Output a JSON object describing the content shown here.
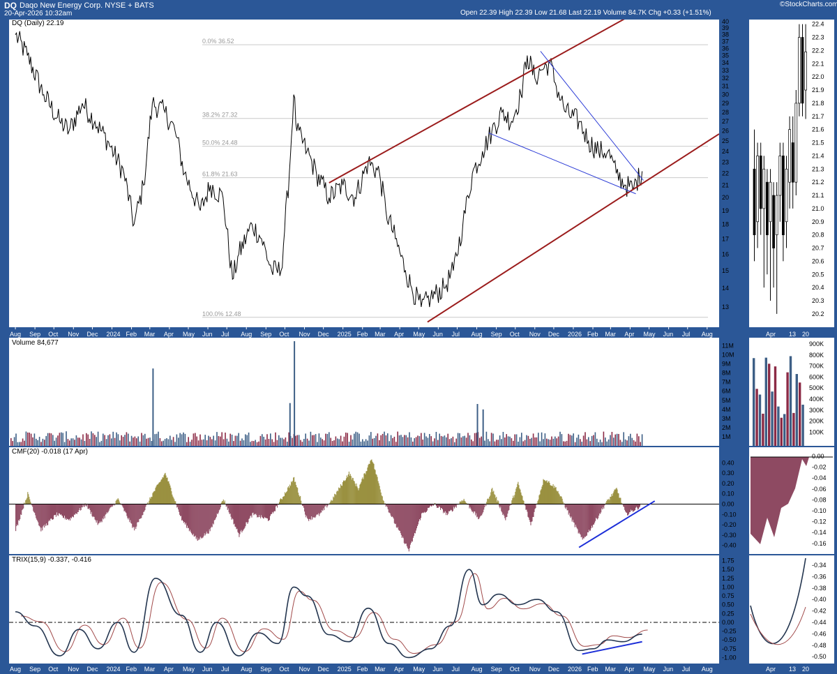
{
  "header": {
    "ticker": "DQ",
    "company": "Daqo New Energy Corp. NYSE + BATS",
    "datetime": "20-Apr-2026 10:32am",
    "stats": "Open 22.39 High 22.39 Low 21.68 Last 22.19 Volume 84.7K Chg +0.33 (+1.51%)",
    "logo": "©StockCharts.com"
  },
  "colors": {
    "background": "#2b5797",
    "panel": "#ffffff",
    "price_line": "#000000",
    "channel": "#9b1c1c",
    "wedge": "#2b3bd6",
    "volume_up": "#3d5f86",
    "volume_down": "#8b2a45",
    "cmf_positive": "#9a9140",
    "cmf_negative": "#8e4a62",
    "trix": "#23354f",
    "trix_signal": "#a04848",
    "trend": "#1c2ed8"
  },
  "chart_data": [
    {
      "type": "line",
      "panel": "price",
      "title": "DQ (Daily) 22.19",
      "x_tick_labels": [
        "Aug",
        "Sep",
        "Oct",
        "Nov",
        "Dec",
        "2024",
        "Feb",
        "Mar",
        "Apr",
        "May",
        "Jun",
        "Jul",
        "Aug",
        "Sep",
        "Oct",
        "Nov",
        "Dec",
        "2025",
        "Feb",
        "Mar",
        "Apr",
        "May",
        "Jun",
        "Jul",
        "Aug",
        "Sep",
        "Oct",
        "Nov",
        "Dec",
        "2026",
        "Feb",
        "Mar",
        "Apr",
        "May",
        "Jun",
        "Jul",
        "Aug"
      ],
      "y_tick_labels": [
        "13",
        "14",
        "15",
        "16",
        "17",
        "18",
        "19",
        "20",
        "21",
        "22",
        "23",
        "24",
        "25",
        "26",
        "27",
        "28",
        "29",
        "30",
        "31",
        "32",
        "33",
        "34",
        "35",
        "36",
        "37",
        "38",
        "39",
        "40"
      ],
      "y_scale": "log",
      "ylim": [
        12.1,
        40
      ],
      "series": [
        {
          "x": [
            "2023-08-01",
            "2023-08-20",
            "2023-09-15",
            "2023-10-10",
            "2023-10-25",
            "2023-11-15",
            "2023-12-05",
            "2023-12-25",
            "2024-01-20",
            "2024-02-05",
            "2024-02-20",
            "2024-03-05",
            "2024-03-25",
            "2024-04-10",
            "2024-04-25",
            "2024-05-20",
            "2024-06-05",
            "2024-06-25",
            "2024-07-10",
            "2024-07-20",
            "2024-08-10",
            "2024-08-25",
            "2024-09-10",
            "2024-09-25",
            "2024-10-08",
            "2024-10-15",
            "2024-10-20",
            "2024-11-05",
            "2024-11-20",
            "2024-12-10",
            "2025-01-01",
            "2025-01-20",
            "2025-02-10",
            "2025-02-28",
            "2025-03-10",
            "2025-03-25",
            "2025-04-10",
            "2025-04-20",
            "2025-05-05",
            "2025-05-20",
            "2025-06-10",
            "2025-06-25",
            "2025-07-10",
            "2025-07-25",
            "2025-08-10",
            "2025-08-25",
            "2025-09-10",
            "2025-09-25",
            "2025-10-10",
            "2025-10-20",
            "2025-11-01",
            "2025-11-10",
            "2025-11-25",
            "2025-12-05",
            "2025-12-20",
            "2026-01-10",
            "2026-01-25",
            "2026-02-10",
            "2026-02-25",
            "2026-03-10",
            "2026-03-25",
            "2026-04-05",
            "2026-04-20"
          ],
          "values": [
            38,
            35,
            30,
            27,
            26,
            29,
            27,
            25,
            22,
            18,
            21,
            29,
            28,
            26,
            22,
            19,
            21,
            20,
            14.5,
            16,
            18,
            17,
            15,
            15,
            22,
            30,
            26,
            24,
            22,
            20,
            21,
            20,
            23,
            22,
            19,
            17,
            15,
            14,
            13,
            13.5,
            14,
            15,
            18,
            22,
            24,
            26,
            28,
            27,
            30,
            35,
            32,
            33,
            34,
            31,
            28,
            27,
            25,
            24,
            24,
            22,
            21,
            20.7,
            22.19
          ]
        }
      ],
      "fibonacci": [
        "0.0% 36.52",
        "38.2% 27.32",
        "50.0% 24.48",
        "61.8% 21.63",
        "100.0% 12.48"
      ]
    },
    {
      "type": "bar",
      "panel": "volume",
      "title": "Volume 84,677",
      "y_tick_labels": [
        "1M",
        "2M",
        "3M",
        "4M",
        "5M",
        "6M",
        "7M",
        "8M",
        "9M",
        "10M",
        "11M"
      ],
      "ylim": [
        0,
        11.5
      ],
      "unit": "M",
      "notable_spikes": [
        {
          "x": "2024-03-05",
          "value": 8.5
        },
        {
          "x": "2024-10-08",
          "value": 4.7
        },
        {
          "x": "2024-10-15",
          "value": 11.5
        },
        {
          "x": "2025-08-01",
          "value": 4.6
        },
        {
          "x": "2025-08-10",
          "value": 4.0
        }
      ],
      "typical_value": 1.0
    },
    {
      "type": "area",
      "panel": "cmf",
      "title": "CMF(20) -0.018 (17 Apr)",
      "y_tick_labels": [
        "0.40",
        "0.30",
        "0.20",
        "0.10",
        "0.00",
        "-0.10",
        "-0.20",
        "-0.30",
        "-0.40"
      ],
      "ylim": [
        -0.45,
        0.45
      ],
      "series": [
        {
          "x": [
            "2023-08-01",
            "2023-08-20",
            "2023-09-10",
            "2023-10-05",
            "2023-10-25",
            "2023-11-20",
            "2023-12-10",
            "2024-01-10",
            "2024-02-05",
            "2024-03-05",
            "2024-03-25",
            "2024-04-20",
            "2024-05-15",
            "2024-06-05",
            "2024-06-25",
            "2024-07-20",
            "2024-08-10",
            "2024-09-05",
            "2024-09-25",
            "2024-10-15",
            "2024-11-05",
            "2024-11-25",
            "2024-12-15",
            "2025-01-10",
            "2025-01-25",
            "2025-02-15",
            "2025-03-05",
            "2025-03-25",
            "2025-04-15",
            "2025-05-05",
            "2025-05-25",
            "2025-06-15",
            "2025-07-10",
            "2025-08-05",
            "2025-08-25",
            "2025-09-15",
            "2025-10-05",
            "2025-10-25",
            "2025-11-15",
            "2025-12-05",
            "2025-12-25",
            "2026-01-15",
            "2026-02-01",
            "2026-02-20",
            "2026-03-10",
            "2026-03-25",
            "2026-04-17"
          ],
          "values": [
            -0.25,
            0.1,
            -0.25,
            -0.1,
            -0.15,
            0.0,
            -0.2,
            0.05,
            -0.25,
            0.1,
            0.3,
            -0.15,
            -0.35,
            -0.25,
            0.05,
            -0.3,
            -0.1,
            -0.15,
            0.05,
            0.25,
            -0.15,
            -0.1,
            0.05,
            0.3,
            0.15,
            0.45,
            0.05,
            -0.2,
            -0.45,
            -0.1,
            0.0,
            -0.1,
            0.05,
            -0.15,
            0.15,
            -0.15,
            0.2,
            -0.2,
            0.25,
            0.15,
            -0.1,
            -0.35,
            -0.2,
            0.0,
            0.15,
            -0.1,
            -0.018
          ]
        }
      ]
    },
    {
      "type": "line",
      "panel": "trix",
      "title": "TRIX(15,9) -0.337, -0.416",
      "y_tick_labels": [
        "1.75",
        "1.50",
        "1.25",
        "1.00",
        "0.75",
        "0.50",
        "0.25",
        "0.00",
        "-0.25",
        "-0.50",
        "-0.75",
        "-1.00"
      ],
      "ylim": [
        -1.05,
        1.8
      ],
      "series": [
        {
          "x": [
            "2023-08-01",
            "2023-09-01",
            "2023-10-10",
            "2023-11-10",
            "2023-12-10",
            "2024-01-10",
            "2024-02-05",
            "2024-03-10",
            "2024-04-20",
            "2024-05-20",
            "2024-06-15",
            "2024-07-20",
            "2024-08-20",
            "2024-09-20",
            "2024-10-15",
            "2024-11-05",
            "2024-12-10",
            "2025-01-10",
            "2025-02-10",
            "2025-03-15",
            "2025-04-15",
            "2025-05-20",
            "2025-06-20",
            "2025-07-20",
            "2025-08-10",
            "2025-09-05",
            "2025-10-05",
            "2025-11-05",
            "2025-12-05",
            "2026-01-10",
            "2026-02-01",
            "2026-02-25",
            "2026-03-20",
            "2026-04-20"
          ],
          "values": [
            0.3,
            -0.1,
            -0.95,
            -0.2,
            -0.75,
            0.0,
            -0.85,
            1.25,
            0.2,
            -0.85,
            0.0,
            -0.95,
            -0.3,
            -0.6,
            1.0,
            0.75,
            -0.35,
            -0.55,
            0.4,
            -0.6,
            -1.0,
            -0.75,
            -0.1,
            1.5,
            0.5,
            0.8,
            0.5,
            0.65,
            0.3,
            -0.8,
            -0.75,
            -0.5,
            -0.55,
            -0.337
          ]
        }
      ]
    }
  ]
}
